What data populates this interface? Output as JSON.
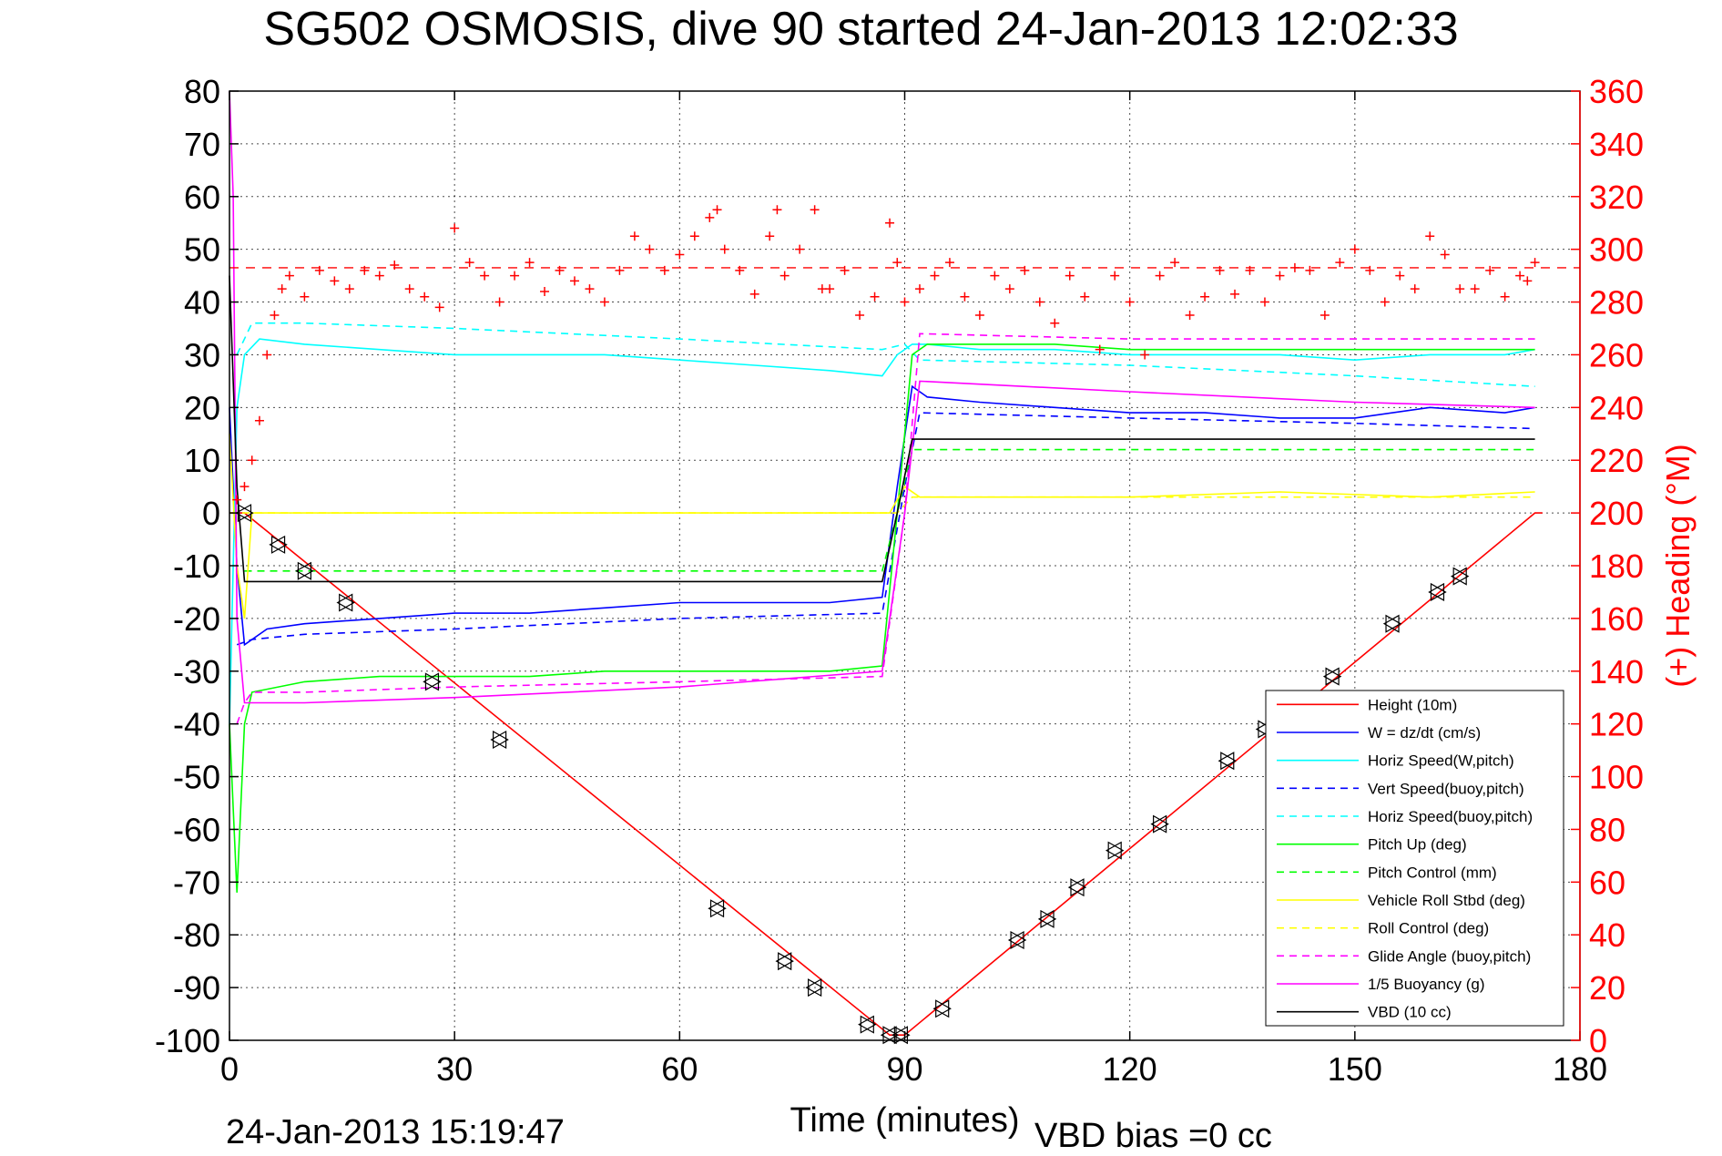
{
  "title": "SG502 OSMOSIS, dive 90 started 24-Jan-2013 12:02:33",
  "footer": {
    "timestamp": "24-Jan-2013 15:19:47",
    "vbd_bias": "VBD bias =0 cc"
  },
  "chart_data": {
    "type": "line",
    "xlabel": "Time (minutes)",
    "xlim": [
      0,
      180
    ],
    "xticks": [
      0,
      30,
      60,
      90,
      120,
      150,
      180
    ],
    "ylim": [
      -100,
      80
    ],
    "yticks": [
      -100,
      -90,
      -80,
      -70,
      -60,
      -50,
      -40,
      -30,
      -20,
      -10,
      0,
      10,
      20,
      30,
      40,
      50,
      60,
      70,
      80
    ],
    "y2label": "(+) Heading (°M)",
    "y2lim": [
      0,
      360
    ],
    "y2ticks": [
      0,
      20,
      40,
      60,
      80,
      100,
      120,
      140,
      160,
      180,
      200,
      220,
      240,
      260,
      280,
      300,
      320,
      340,
      360
    ],
    "grid": true,
    "legend_position": "bottom-right",
    "colors": {
      "red": "#ff0000",
      "blue": "#0000ff",
      "cyan": "#00ffff",
      "green": "#00ff00",
      "yellow": "#ffff00",
      "magenta": "#ff00ff",
      "black": "#000000",
      "axis2": "#ff0000"
    },
    "series": [
      {
        "name": "Height (10m)",
        "color": "#ff0000",
        "dash": "solid",
        "x": [
          0,
          2,
          88,
          90,
          174,
          175
        ],
        "y": [
          0,
          0,
          -99,
          -99,
          0,
          0
        ]
      },
      {
        "name": "W = dz/dt (cm/s)",
        "color": "#0000ff",
        "dash": "solid",
        "x": [
          0,
          1,
          2,
          5,
          10,
          20,
          30,
          40,
          50,
          60,
          70,
          80,
          87,
          89,
          91,
          93,
          100,
          110,
          120,
          130,
          140,
          150,
          160,
          170,
          174
        ],
        "y": [
          20,
          -10,
          -25,
          -22,
          -21,
          -20,
          -19,
          -19,
          -18,
          -17,
          -17,
          -17,
          -16,
          5,
          24,
          22,
          21,
          20,
          19,
          19,
          18,
          18,
          20,
          19,
          20
        ]
      },
      {
        "name": "Horiz Speed(W,pitch)",
        "color": "#00ffff",
        "dash": "solid",
        "x": [
          0,
          1,
          2,
          4,
          10,
          20,
          30,
          40,
          50,
          60,
          70,
          80,
          87,
          89,
          91,
          93,
          100,
          110,
          120,
          130,
          140,
          150,
          160,
          170,
          174
        ],
        "y": [
          -40,
          20,
          30,
          33,
          32,
          31,
          30,
          30,
          30,
          29,
          28,
          27,
          26,
          30,
          32,
          32,
          31,
          31,
          30,
          30,
          30,
          29,
          30,
          30,
          31
        ]
      },
      {
        "name": "Vert Speed(buoy,pitch)",
        "color": "#0000ff",
        "dash": "dashed",
        "x": [
          1,
          3,
          10,
          30,
          60,
          87,
          90,
          92,
          120,
          150,
          174
        ],
        "y": [
          -25,
          -24,
          -23,
          -22,
          -20,
          -19,
          5,
          19,
          18,
          17,
          16
        ]
      },
      {
        "name": "Horiz Speed(buoy,pitch)",
        "color": "#00ffff",
        "dash": "dashed",
        "x": [
          1,
          3,
          10,
          30,
          60,
          87,
          90,
          92,
          120,
          150,
          174
        ],
        "y": [
          30,
          36,
          36,
          35,
          33,
          31,
          32,
          29,
          28,
          26,
          24
        ]
      },
      {
        "name": "Pitch Up (deg)",
        "color": "#00ff00",
        "dash": "solid",
        "x": [
          0,
          1,
          2,
          3,
          10,
          20,
          30,
          40,
          50,
          60,
          70,
          80,
          87,
          89,
          91,
          93,
          100,
          110,
          120,
          130,
          140,
          150,
          160,
          170,
          174
        ],
        "y": [
          -40,
          -72,
          -40,
          -34,
          -32,
          -31,
          -31,
          -31,
          -30,
          -30,
          -30,
          -30,
          -29,
          0,
          30,
          32,
          32,
          32,
          31,
          31,
          31,
          31,
          31,
          31,
          31
        ]
      },
      {
        "name": "Pitch Control (mm)",
        "color": "#00ff00",
        "dash": "dashed",
        "x": [
          2,
          87,
          89,
          91,
          174
        ],
        "y": [
          -11,
          -11,
          0,
          12,
          12
        ]
      },
      {
        "name": "Vehicle Roll Stbd (deg)",
        "color": "#ffff00",
        "dash": "solid",
        "x": [
          0,
          1,
          2,
          3,
          10,
          30,
          50,
          70,
          86,
          88,
          90,
          92,
          100,
          120,
          140,
          160,
          174
        ],
        "y": [
          15,
          -10,
          -20,
          0,
          0,
          0,
          0,
          0,
          0,
          0,
          5,
          3,
          3,
          3,
          4,
          3,
          4
        ]
      },
      {
        "name": "Roll Control (deg)",
        "color": "#ffff00",
        "dash": "dashed",
        "x": [
          0,
          2,
          86,
          89,
          91,
          174
        ],
        "y": [
          0,
          0,
          0,
          0,
          3,
          3
        ]
      },
      {
        "name": "Glide Angle (buoy,pitch)",
        "color": "#ff00ff",
        "dash": "dashed",
        "x": [
          1,
          2,
          3,
          10,
          30,
          60,
          87,
          90,
          92,
          120,
          150,
          174
        ],
        "y": [
          -40,
          -36,
          -34,
          -34,
          -33,
          -32,
          -31,
          0,
          34,
          33,
          33,
          33
        ]
      },
      {
        "name": "1/5 Buoyancy (g)",
        "color": "#ff00ff",
        "dash": "solid",
        "x": [
          0,
          0.5,
          1,
          2,
          10,
          30,
          60,
          87,
          90,
          92,
          120,
          150,
          174
        ],
        "y": [
          80,
          60,
          -20,
          -36,
          -36,
          -35,
          -33,
          -30,
          0,
          25,
          23,
          21,
          20
        ]
      },
      {
        "name": "VBD (10 cc)",
        "color": "#000000",
        "dash": "solid",
        "x": [
          0,
          1,
          2,
          87,
          89,
          91,
          174
        ],
        "y": [
          45,
          5,
          -13,
          -13,
          0,
          14,
          14
        ]
      }
    ],
    "heading": {
      "name": "(+) Heading (°M)",
      "color": "#ff0000",
      "marker": "+",
      "axis": "right",
      "target": 293,
      "x": [
        1,
        2,
        3,
        4,
        5,
        6,
        7,
        8,
        10,
        12,
        14,
        16,
        18,
        20,
        22,
        24,
        26,
        28,
        30,
        32,
        34,
        36,
        38,
        40,
        42,
        44,
        46,
        48,
        50,
        52,
        54,
        56,
        58,
        60,
        62,
        64,
        65,
        66,
        68,
        70,
        72,
        73,
        74,
        76,
        78,
        79,
        80,
        82,
        84,
        86,
        88,
        89,
        90,
        92,
        94,
        96,
        98,
        100,
        102,
        104,
        106,
        108,
        110,
        112,
        114,
        116,
        118,
        120,
        122,
        124,
        126,
        128,
        130,
        132,
        134,
        136,
        138,
        140,
        142,
        144,
        146,
        148,
        150,
        152,
        154,
        156,
        158,
        160,
        162,
        164,
        166,
        168,
        170,
        172,
        173,
        174
      ],
      "y": [
        205,
        210,
        220,
        235,
        260,
        275,
        285,
        290,
        282,
        292,
        288,
        285,
        292,
        290,
        294,
        285,
        282,
        278,
        308,
        295,
        290,
        280,
        290,
        295,
        284,
        292,
        288,
        285,
        280,
        292,
        305,
        300,
        292,
        298,
        305,
        312,
        315,
        300,
        292,
        283,
        305,
        315,
        290,
        300,
        315,
        285,
        285,
        292,
        275,
        282,
        310,
        295,
        280,
        285,
        290,
        295,
        282,
        275,
        290,
        285,
        292,
        280,
        272,
        290,
        282,
        262,
        290,
        280,
        260,
        290,
        295,
        275,
        282,
        292,
        283,
        292,
        280,
        290,
        293,
        292,
        275,
        295,
        300,
        292,
        280,
        290,
        285,
        305,
        298,
        285,
        285,
        292,
        282,
        290,
        288,
        295
      ]
    },
    "legend_entries": [
      "Height (10m)",
      "W = dz/dt (cm/s)",
      "Horiz Speed(W,pitch)",
      "Vert Speed(buoy,pitch)",
      "Horiz Speed(buoy,pitch)",
      "Pitch Up (deg)",
      "Pitch Control (mm)",
      "Vehicle Roll Stbd (deg)",
      "Roll Control (deg)",
      "Glide Angle (buoy,pitch)",
      "1/5 Buoyancy (g)",
      "VBD (10 cc)"
    ],
    "legend_colors": [
      "#ff0000",
      "#0000ff",
      "#00ffff",
      "#0000ff",
      "#00ffff",
      "#00ff00",
      "#00ff00",
      "#ffff00",
      "#ffff00",
      "#ff00ff",
      "#ff00ff",
      "#000000"
    ],
    "legend_dashes": [
      "solid",
      "solid",
      "solid",
      "dashed",
      "dashed",
      "solid",
      "dashed",
      "solid",
      "dashed",
      "dashed",
      "solid",
      "solid"
    ],
    "markers": {
      "x": [
        2,
        6.5,
        10,
        15.5,
        27,
        36,
        65,
        74,
        78,
        85,
        88,
        89.5,
        95,
        105,
        109,
        113,
        118,
        124,
        133,
        138,
        147,
        155,
        161,
        164
      ],
      "y": [
        0,
        -6,
        -11,
        -17,
        -32,
        -43,
        -75,
        -85,
        -90,
        -97,
        -99,
        -99,
        -94,
        -81,
        -77,
        -71,
        -64,
        -59,
        -47,
        -41,
        -31,
        -21,
        -15,
        -12
      ]
    }
  }
}
